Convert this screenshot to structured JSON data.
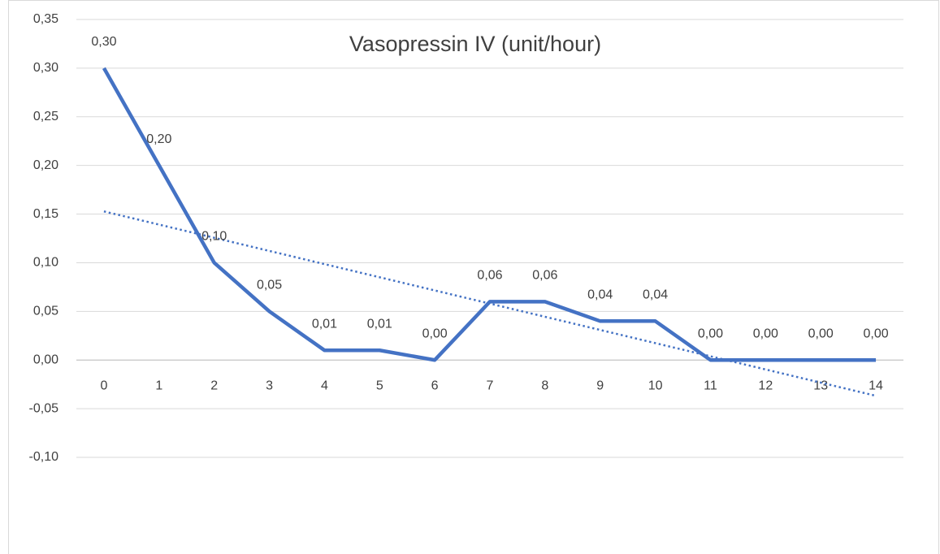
{
  "chart_data": {
    "type": "line",
    "title": "Vasopressin IV (unit/hour)",
    "categories": [
      "0",
      "1",
      "2",
      "3",
      "4",
      "5",
      "6",
      "7",
      "8",
      "9",
      "10",
      "11",
      "12",
      "13",
      "14"
    ],
    "values": [
      0.3,
      0.2,
      0.1,
      0.05,
      0.01,
      0.01,
      0.0,
      0.06,
      0.06,
      0.04,
      0.04,
      0.0,
      0.0,
      0.0,
      0.0
    ],
    "value_labels": [
      "0,30",
      "0,20",
      "0,10",
      "0,05",
      "0,01",
      "0,01",
      "0,00",
      "0,06",
      "0,06",
      "0,04",
      "0,04",
      "0,00",
      "0,00",
      "0,00",
      "0,00"
    ],
    "color": "#4472c4",
    "trendline": "linear",
    "ylim": [
      -0.1,
      0.35
    ],
    "yticks": [
      {
        "value": -0.1,
        "label": "-0,10"
      },
      {
        "value": -0.05,
        "label": "-0,05"
      },
      {
        "value": 0,
        "label": "0,00"
      },
      {
        "value": 0.05,
        "label": "0,05"
      },
      {
        "value": 0.1,
        "label": "0,10"
      },
      {
        "value": 0.15,
        "label": "0,15"
      },
      {
        "value": 0.2,
        "label": "0,20"
      },
      {
        "value": 0.25,
        "label": "0,25"
      },
      {
        "value": 0.3,
        "label": "0,30"
      },
      {
        "value": 0.35,
        "label": "0,35"
      }
    ],
    "grid": true
  }
}
